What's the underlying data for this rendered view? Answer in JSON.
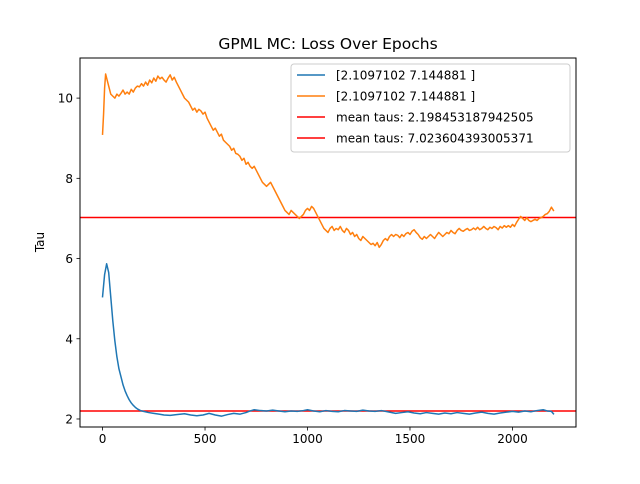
{
  "chart_data": {
    "type": "line",
    "title": "GPML MC: Loss Over Epochs",
    "xlabel": "",
    "ylabel": "Tau",
    "xlim": [
      -110,
      2310
    ],
    "ylim": [
      1.8,
      11.0
    ],
    "xticks": [
      0,
      500,
      1000,
      1500,
      2000
    ],
    "yticks": [
      2,
      4,
      6,
      8,
      10
    ],
    "grid": false,
    "legend_position": "top-right",
    "series": [
      {
        "name": "[2.1097102 7.144881 ]",
        "color": "#1f77b4",
        "points": [
          [
            0,
            5.05
          ],
          [
            10,
            5.6
          ],
          [
            20,
            5.87
          ],
          [
            30,
            5.65
          ],
          [
            40,
            5.05
          ],
          [
            50,
            4.45
          ],
          [
            60,
            3.95
          ],
          [
            70,
            3.55
          ],
          [
            80,
            3.25
          ],
          [
            90,
            3.05
          ],
          [
            100,
            2.85
          ],
          [
            110,
            2.7
          ],
          [
            120,
            2.58
          ],
          [
            130,
            2.48
          ],
          [
            140,
            2.4
          ],
          [
            150,
            2.34
          ],
          [
            160,
            2.29
          ],
          [
            170,
            2.25
          ],
          [
            185,
            2.21
          ],
          [
            200,
            2.19
          ],
          [
            225,
            2.16
          ],
          [
            250,
            2.14
          ],
          [
            275,
            2.12
          ],
          [
            300,
            2.1
          ],
          [
            330,
            2.09
          ],
          [
            360,
            2.11
          ],
          [
            400,
            2.13
          ],
          [
            430,
            2.1
          ],
          [
            460,
            2.08
          ],
          [
            490,
            2.1
          ],
          [
            520,
            2.14
          ],
          [
            550,
            2.1
          ],
          [
            580,
            2.07
          ],
          [
            610,
            2.11
          ],
          [
            640,
            2.14
          ],
          [
            670,
            2.12
          ],
          [
            700,
            2.16
          ],
          [
            720,
            2.2
          ],
          [
            740,
            2.23
          ],
          [
            770,
            2.21
          ],
          [
            800,
            2.2
          ],
          [
            830,
            2.22
          ],
          [
            860,
            2.2
          ],
          [
            890,
            2.18
          ],
          [
            920,
            2.2
          ],
          [
            950,
            2.19
          ],
          [
            980,
            2.21
          ],
          [
            1000,
            2.23
          ],
          [
            1030,
            2.2
          ],
          [
            1060,
            2.18
          ],
          [
            1090,
            2.21
          ],
          [
            1120,
            2.19
          ],
          [
            1150,
            2.18
          ],
          [
            1180,
            2.21
          ],
          [
            1210,
            2.2
          ],
          [
            1240,
            2.19
          ],
          [
            1270,
            2.22
          ],
          [
            1300,
            2.2
          ],
          [
            1330,
            2.19
          ],
          [
            1360,
            2.21
          ],
          [
            1400,
            2.17
          ],
          [
            1430,
            2.14
          ],
          [
            1460,
            2.16
          ],
          [
            1490,
            2.18
          ],
          [
            1520,
            2.15
          ],
          [
            1550,
            2.13
          ],
          [
            1580,
            2.16
          ],
          [
            1610,
            2.14
          ],
          [
            1640,
            2.12
          ],
          [
            1670,
            2.15
          ],
          [
            1700,
            2.13
          ],
          [
            1730,
            2.16
          ],
          [
            1760,
            2.14
          ],
          [
            1790,
            2.12
          ],
          [
            1820,
            2.15
          ],
          [
            1850,
            2.17
          ],
          [
            1880,
            2.14
          ],
          [
            1910,
            2.12
          ],
          [
            1940,
            2.15
          ],
          [
            1970,
            2.17
          ],
          [
            2000,
            2.19
          ],
          [
            2030,
            2.17
          ],
          [
            2060,
            2.2
          ],
          [
            2090,
            2.18
          ],
          [
            2120,
            2.21
          ],
          [
            2150,
            2.23
          ],
          [
            2170,
            2.2
          ],
          [
            2190,
            2.19
          ],
          [
            2200,
            2.13
          ]
        ]
      },
      {
        "name": "[2.1097102 7.144881 ]",
        "color": "#ff7f0e",
        "points": [
          [
            0,
            9.1
          ],
          [
            5,
            9.6
          ],
          [
            10,
            10.25
          ],
          [
            15,
            10.6
          ],
          [
            20,
            10.5
          ],
          [
            30,
            10.3
          ],
          [
            40,
            10.1
          ],
          [
            50,
            10.05
          ],
          [
            60,
            10.0
          ],
          [
            70,
            10.1
          ],
          [
            80,
            10.05
          ],
          [
            90,
            10.12
          ],
          [
            100,
            10.2
          ],
          [
            110,
            10.1
          ],
          [
            120,
            10.15
          ],
          [
            130,
            10.1
          ],
          [
            140,
            10.22
          ],
          [
            150,
            10.15
          ],
          [
            160,
            10.25
          ],
          [
            170,
            10.3
          ],
          [
            180,
            10.28
          ],
          [
            190,
            10.36
          ],
          [
            200,
            10.3
          ],
          [
            210,
            10.4
          ],
          [
            220,
            10.32
          ],
          [
            230,
            10.45
          ],
          [
            240,
            10.38
          ],
          [
            250,
            10.5
          ],
          [
            260,
            10.42
          ],
          [
            270,
            10.55
          ],
          [
            280,
            10.48
          ],
          [
            290,
            10.52
          ],
          [
            300,
            10.45
          ],
          [
            310,
            10.4
          ],
          [
            320,
            10.5
          ],
          [
            330,
            10.58
          ],
          [
            340,
            10.45
          ],
          [
            350,
            10.52
          ],
          [
            360,
            10.4
          ],
          [
            370,
            10.3
          ],
          [
            380,
            10.2
          ],
          [
            390,
            10.1
          ],
          [
            400,
            10.0
          ],
          [
            410,
            9.95
          ],
          [
            420,
            9.9
          ],
          [
            430,
            9.8
          ],
          [
            440,
            9.7
          ],
          [
            450,
            9.75
          ],
          [
            460,
            9.65
          ],
          [
            470,
            9.72
          ],
          [
            480,
            9.68
          ],
          [
            490,
            9.6
          ],
          [
            500,
            9.65
          ],
          [
            510,
            9.5
          ],
          [
            520,
            9.4
          ],
          [
            530,
            9.3
          ],
          [
            540,
            9.2
          ],
          [
            550,
            9.25
          ],
          [
            560,
            9.15
          ],
          [
            570,
            9.05
          ],
          [
            580,
            9.1
          ],
          [
            590,
            8.95
          ],
          [
            600,
            8.9
          ],
          [
            610,
            8.85
          ],
          [
            620,
            8.8
          ],
          [
            630,
            8.7
          ],
          [
            640,
            8.75
          ],
          [
            650,
            8.62
          ],
          [
            660,
            8.6
          ],
          [
            670,
            8.55
          ],
          [
            680,
            8.45
          ],
          [
            690,
            8.5
          ],
          [
            700,
            8.35
          ],
          [
            710,
            8.4
          ],
          [
            720,
            8.3
          ],
          [
            730,
            8.25
          ],
          [
            740,
            8.3
          ],
          [
            750,
            8.2
          ],
          [
            760,
            8.1
          ],
          [
            770,
            8.0
          ],
          [
            780,
            7.9
          ],
          [
            790,
            7.85
          ],
          [
            800,
            7.8
          ],
          [
            810,
            7.85
          ],
          [
            820,
            7.9
          ],
          [
            830,
            7.8
          ],
          [
            840,
            7.7
          ],
          [
            850,
            7.6
          ],
          [
            860,
            7.5
          ],
          [
            870,
            7.4
          ],
          [
            880,
            7.3
          ],
          [
            890,
            7.2
          ],
          [
            900,
            7.15
          ],
          [
            910,
            7.1
          ],
          [
            920,
            7.2
          ],
          [
            930,
            7.15
          ],
          [
            940,
            7.1
          ],
          [
            950,
            7.05
          ],
          [
            960,
            7.0
          ],
          [
            970,
            7.05
          ],
          [
            980,
            7.1
          ],
          [
            990,
            7.2
          ],
          [
            1000,
            7.25
          ],
          [
            1010,
            7.2
          ],
          [
            1020,
            7.3
          ],
          [
            1030,
            7.25
          ],
          [
            1040,
            7.15
          ],
          [
            1050,
            7.05
          ],
          [
            1060,
            6.95
          ],
          [
            1070,
            6.85
          ],
          [
            1080,
            6.75
          ],
          [
            1090,
            6.7
          ],
          [
            1100,
            6.65
          ],
          [
            1110,
            6.75
          ],
          [
            1120,
            6.8
          ],
          [
            1130,
            6.7
          ],
          [
            1140,
            6.75
          ],
          [
            1150,
            6.72
          ],
          [
            1160,
            6.8
          ],
          [
            1170,
            6.7
          ],
          [
            1180,
            6.65
          ],
          [
            1190,
            6.75
          ],
          [
            1200,
            6.7
          ],
          [
            1210,
            6.6
          ],
          [
            1220,
            6.65
          ],
          [
            1230,
            6.55
          ],
          [
            1240,
            6.6
          ],
          [
            1250,
            6.5
          ],
          [
            1260,
            6.45
          ],
          [
            1270,
            6.55
          ],
          [
            1280,
            6.5
          ],
          [
            1290,
            6.45
          ],
          [
            1300,
            6.4
          ],
          [
            1310,
            6.35
          ],
          [
            1320,
            6.38
          ],
          [
            1330,
            6.32
          ],
          [
            1340,
            6.4
          ],
          [
            1350,
            6.28
          ],
          [
            1360,
            6.35
          ],
          [
            1370,
            6.45
          ],
          [
            1380,
            6.5
          ],
          [
            1390,
            6.45
          ],
          [
            1400,
            6.55
          ],
          [
            1410,
            6.6
          ],
          [
            1420,
            6.55
          ],
          [
            1430,
            6.6
          ],
          [
            1440,
            6.58
          ],
          [
            1450,
            6.52
          ],
          [
            1460,
            6.6
          ],
          [
            1470,
            6.55
          ],
          [
            1480,
            6.62
          ],
          [
            1490,
            6.65
          ],
          [
            1500,
            6.6
          ],
          [
            1510,
            6.68
          ],
          [
            1520,
            6.72
          ],
          [
            1530,
            6.65
          ],
          [
            1540,
            6.6
          ],
          [
            1550,
            6.52
          ],
          [
            1560,
            6.48
          ],
          [
            1570,
            6.55
          ],
          [
            1580,
            6.5
          ],
          [
            1590,
            6.55
          ],
          [
            1600,
            6.6
          ],
          [
            1610,
            6.55
          ],
          [
            1620,
            6.5
          ],
          [
            1630,
            6.58
          ],
          [
            1640,
            6.65
          ],
          [
            1650,
            6.6
          ],
          [
            1660,
            6.55
          ],
          [
            1670,
            6.6
          ],
          [
            1680,
            6.65
          ],
          [
            1690,
            6.62
          ],
          [
            1700,
            6.7
          ],
          [
            1710,
            6.65
          ],
          [
            1720,
            6.62
          ],
          [
            1730,
            6.7
          ],
          [
            1740,
            6.75
          ],
          [
            1750,
            6.7
          ],
          [
            1760,
            6.68
          ],
          [
            1770,
            6.72
          ],
          [
            1780,
            6.75
          ],
          [
            1790,
            6.7
          ],
          [
            1800,
            6.72
          ],
          [
            1810,
            6.76
          ],
          [
            1820,
            6.72
          ],
          [
            1830,
            6.78
          ],
          [
            1840,
            6.72
          ],
          [
            1850,
            6.75
          ],
          [
            1860,
            6.8
          ],
          [
            1870,
            6.75
          ],
          [
            1880,
            6.72
          ],
          [
            1890,
            6.78
          ],
          [
            1900,
            6.75
          ],
          [
            1910,
            6.8
          ],
          [
            1920,
            6.77
          ],
          [
            1930,
            6.72
          ],
          [
            1940,
            6.8
          ],
          [
            1950,
            6.76
          ],
          [
            1960,
            6.82
          ],
          [
            1970,
            6.78
          ],
          [
            1980,
            6.82
          ],
          [
            1990,
            6.78
          ],
          [
            2000,
            6.85
          ],
          [
            2010,
            6.8
          ],
          [
            2020,
            6.9
          ],
          [
            2030,
            6.98
          ],
          [
            2040,
            7.05
          ],
          [
            2050,
            7.0
          ],
          [
            2060,
            6.95
          ],
          [
            2070,
            7.02
          ],
          [
            2080,
            6.95
          ],
          [
            2090,
            6.92
          ],
          [
            2100,
            6.95
          ],
          [
            2110,
            6.98
          ],
          [
            2120,
            6.95
          ],
          [
            2130,
            7.0
          ],
          [
            2140,
            7.02
          ],
          [
            2150,
            7.05
          ],
          [
            2160,
            7.1
          ],
          [
            2170,
            7.12
          ],
          [
            2180,
            7.18
          ],
          [
            2190,
            7.28
          ],
          [
            2200,
            7.2
          ]
        ]
      }
    ],
    "hlines": [
      {
        "label": "mean taus: 2.198453187942505",
        "y": 2.198453187942505,
        "color": "#ff0000"
      },
      {
        "label": "mean taus: 7.023604393005371",
        "y": 7.023604393005371,
        "color": "#ff0000"
      }
    ]
  }
}
